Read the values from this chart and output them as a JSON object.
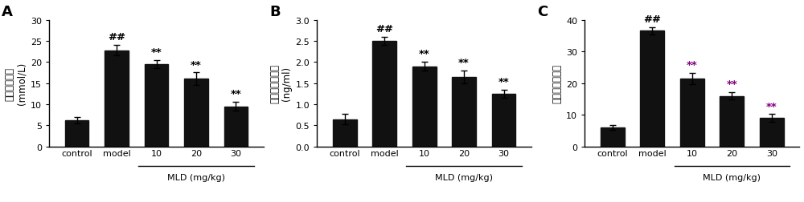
{
  "panels": [
    {
      "label": "A",
      "ylabel_line1": "空腹血糖水平",
      "ylabel_line2": "(mmol/L)",
      "ylim": [
        0,
        30
      ],
      "yticks": [
        0,
        5,
        10,
        15,
        20,
        25,
        30
      ],
      "values": [
        6.2,
        22.8,
        19.5,
        16.0,
        9.5
      ],
      "errors": [
        0.8,
        1.2,
        0.9,
        1.5,
        1.0
      ],
      "annotations": [
        "",
        "##",
        "**",
        "**",
        "**"
      ],
      "ann_colors": [
        "black",
        "black",
        "black",
        "black",
        "black"
      ]
    },
    {
      "label": "B",
      "ylabel_line1": "空腹胰岛素水平",
      "ylabel_line2": "(ng/ml)",
      "ylim": [
        0,
        3
      ],
      "yticks": [
        0,
        0.5,
        1.0,
        1.5,
        2.0,
        2.5,
        3.0
      ],
      "values": [
        0.65,
        2.5,
        1.9,
        1.65,
        1.25
      ],
      "errors": [
        0.12,
        0.1,
        0.1,
        0.15,
        0.1
      ],
      "annotations": [
        "",
        "##",
        "**",
        "**",
        "**"
      ],
      "ann_colors": [
        "black",
        "black",
        "black",
        "black",
        "black"
      ]
    },
    {
      "label": "C",
      "ylabel_line1": "胰岛素敏感指数",
      "ylabel_line2": "",
      "ylim": [
        0,
        40
      ],
      "yticks": [
        0,
        10,
        20,
        30,
        40
      ],
      "values": [
        6.0,
        36.5,
        21.5,
        16.0,
        9.0
      ],
      "errors": [
        0.8,
        1.2,
        1.8,
        1.2,
        1.2
      ],
      "annotations": [
        "",
        "##",
        "**",
        "**",
        "**"
      ],
      "ann_colors": [
        "black",
        "black",
        "purple",
        "purple",
        "purple"
      ]
    }
  ],
  "categories": [
    "control",
    "model",
    "10",
    "20",
    "30"
  ],
  "bar_color": "#111111",
  "bar_width": 0.6,
  "xlabel_mld": "MLD (mg/kg)",
  "background_color": "#ffffff",
  "panel_label_fontsize": 13,
  "ylabel_fontsize": 8.5,
  "tick_fontsize": 8,
  "ann_fontsize": 9.5
}
